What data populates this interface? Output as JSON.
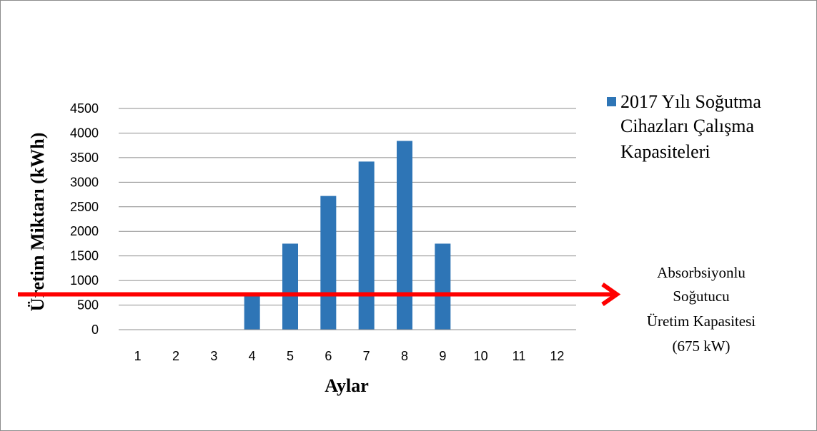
{
  "chart_data": {
    "type": "bar",
    "categories": [
      "1",
      "2",
      "3",
      "4",
      "5",
      "6",
      "7",
      "8",
      "9",
      "10",
      "11",
      "12"
    ],
    "series": [
      {
        "name": "2017 Yılı Soğutma Cihazları Çalışma Kapasiteleri",
        "values": [
          0,
          0,
          0,
          675,
          1750,
          2720,
          3420,
          3840,
          1750,
          0,
          0,
          0
        ],
        "color": "#2e75b6"
      }
    ],
    "xlabel": "Aylar",
    "ylabel": "Üretim Miktarı (kWh)",
    "ylim": [
      0,
      4500
    ],
    "yticks": [
      0,
      500,
      1000,
      1500,
      2000,
      2500,
      3000,
      3500,
      4000,
      4500
    ],
    "grid": true,
    "legend": {
      "placement": "top-right",
      "lines": [
        "2017 Yılı Soğutma",
        "Cihazları Çalışma",
        "Kapasiteleri"
      ]
    },
    "reference_line": {
      "value": 675,
      "color": "#ff0000",
      "style": "arrow",
      "label_lines": [
        "Absorbsiyonlu",
        "Soğutucu",
        "Üretim Kapasitesi",
        "(675 kW)"
      ]
    }
  }
}
